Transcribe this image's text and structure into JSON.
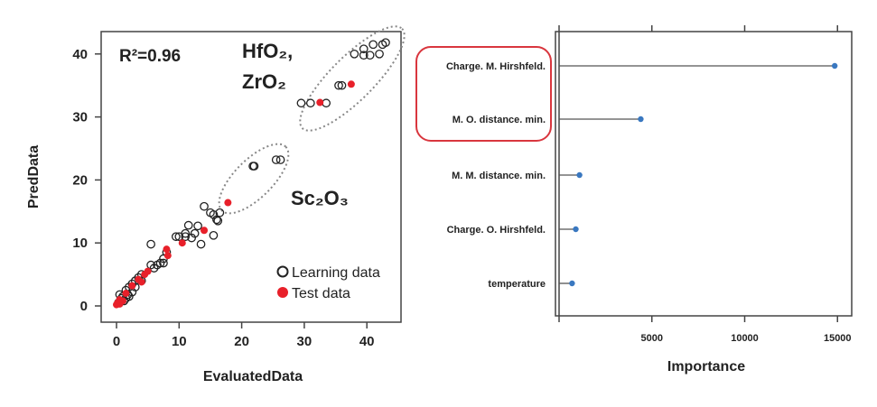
{
  "chart_data": [
    {
      "type": "scatter",
      "xlabel": "EvaluatedData",
      "ylabel": "PredData",
      "xlim": [
        -2,
        45
      ],
      "ylim": [
        -1,
        44
      ],
      "xticks": [
        0,
        10,
        20,
        30,
        40
      ],
      "yticks": [
        0,
        10,
        20,
        30,
        40
      ],
      "annotations": {
        "r2": "R²=0.96",
        "group1_line1": "HfO₂,",
        "group1_line2": "ZrO₂",
        "group2": "Sc₂O₃"
      },
      "legend": {
        "position": "bottom-right",
        "entries": [
          "Learning data",
          "Test data"
        ]
      },
      "colors": {
        "learning": "#222222",
        "test": "#e8202a",
        "ellipse": "#888888"
      },
      "series": [
        {
          "name": "Learning data",
          "points": [
            [
              42.5,
              41.5
            ],
            [
              43,
              41.8
            ],
            [
              41,
              41.5
            ],
            [
              39.5,
              40.8
            ],
            [
              38,
              40
            ],
            [
              39.5,
              39.8
            ],
            [
              40.5,
              39.8
            ],
            [
              42,
              40
            ],
            [
              36,
              35
            ],
            [
              35.5,
              35
            ],
            [
              29.5,
              32.2
            ],
            [
              31,
              32.2
            ],
            [
              33.5,
              32.2
            ],
            [
              22,
              22.2
            ],
            [
              21.8,
              22.2
            ],
            [
              25.5,
              23.2
            ],
            [
              26.2,
              23.2
            ],
            [
              14,
              15.8
            ],
            [
              15,
              14.8
            ],
            [
              15.5,
              14.5
            ],
            [
              16.5,
              14.8
            ],
            [
              16.2,
              13.5
            ],
            [
              16,
              13.7
            ],
            [
              11.5,
              12.8
            ],
            [
              13,
              12.7
            ],
            [
              12.5,
              11.5
            ],
            [
              11,
              11.5
            ],
            [
              10,
              11
            ],
            [
              9.5,
              11
            ],
            [
              13.5,
              9.8
            ],
            [
              15.5,
              11.2
            ],
            [
              12,
              10.8
            ],
            [
              11,
              11
            ],
            [
              5.5,
              9.8
            ],
            [
              8,
              8.5
            ],
            [
              7.5,
              7.5
            ],
            [
              7,
              6.8
            ],
            [
              6.5,
              6.5
            ],
            [
              6,
              6
            ],
            [
              5.5,
              6.5
            ],
            [
              7.5,
              6.8
            ],
            [
              4,
              5
            ],
            [
              3.5,
              4.5
            ],
            [
              3,
              4
            ],
            [
              2.5,
              3.5
            ],
            [
              2,
              3
            ],
            [
              1.5,
              2.5
            ],
            [
              3,
              3
            ],
            [
              4,
              4
            ],
            [
              0.5,
              1.8
            ],
            [
              1,
              1.5
            ],
            [
              1.5,
              1.2
            ],
            [
              2,
              1.5
            ],
            [
              1.2,
              0.8
            ],
            [
              0.8,
              1.2
            ],
            [
              2.5,
              2.2
            ],
            [
              1.8,
              1.8
            ],
            [
              0.3,
              0.5
            ]
          ]
        },
        {
          "name": "Test data",
          "points": [
            [
              37.5,
              35.2
            ],
            [
              32.5,
              32.3
            ],
            [
              17.8,
              16.4
            ],
            [
              14,
              12
            ],
            [
              10.5,
              10
            ],
            [
              8,
              9
            ],
            [
              8.2,
              8
            ],
            [
              5,
              5.5
            ],
            [
              4.5,
              5
            ],
            [
              3.5,
              4.2
            ],
            [
              4,
              3.8
            ],
            [
              2.5,
              3.2
            ],
            [
              1.5,
              2
            ],
            [
              0.5,
              1
            ],
            [
              0.2,
              0.5
            ],
            [
              0.5,
              0.3
            ],
            [
              0,
              0.2
            ],
            [
              1,
              0.8
            ]
          ]
        }
      ]
    },
    {
      "type": "dot",
      "xlabel": "Importance",
      "xlim": [
        0,
        16000
      ],
      "xticks": [
        5000,
        10000,
        15000
      ],
      "highlighted": [
        "Charge. M. Hirshfeld.",
        "M. O. distance. min."
      ],
      "colors": {
        "point": "#3a78c0",
        "highlight": "#d9363e"
      },
      "categories": [
        "Charge. M. Hirshfeld.",
        "M. O. distance. min.",
        "M. M. distance. min.",
        "Charge. O. Hirshfeld.",
        "temperature"
      ],
      "values": [
        14850,
        4400,
        1100,
        900,
        700
      ]
    }
  ]
}
